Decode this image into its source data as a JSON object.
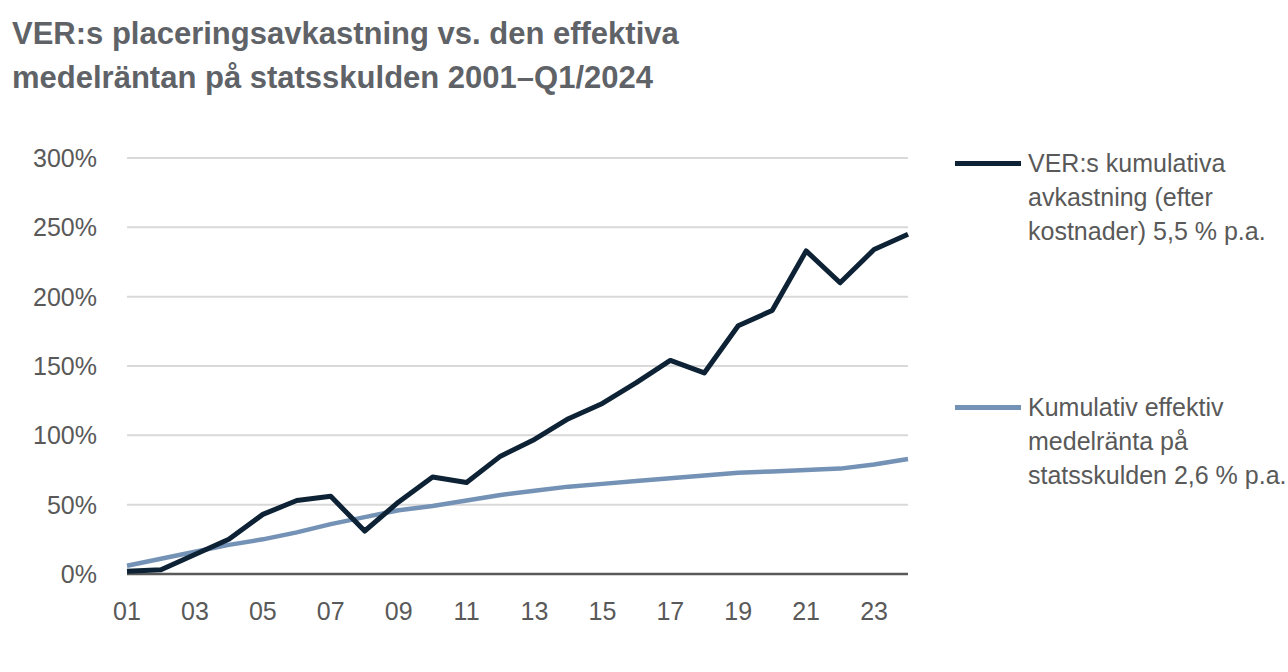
{
  "chart_data": {
    "type": "line",
    "title": "VER:s placeringsavkastning vs. den effektiva medelräntan på statsskulden 2001–Q1/2024",
    "categories": [
      "01",
      null,
      "03",
      null,
      "05",
      null,
      "07",
      null,
      "09",
      null,
      "11",
      null,
      "13",
      null,
      "15",
      null,
      "17",
      null,
      "19",
      null,
      "21",
      null,
      "23",
      null
    ],
    "series": [
      {
        "name": "VER:s kumulativa avkastning (efter kostnader) 5,5 % p.a.",
        "color": "#0d2235",
        "values": [
          2,
          3,
          14,
          25,
          43,
          53,
          56,
          31,
          52,
          70,
          66,
          85,
          97,
          112,
          123,
          138,
          154,
          145,
          179,
          190,
          233,
          210,
          234,
          245
        ]
      },
      {
        "name": "Kumulativ effektiv medelränta på statsskulden 2,6 % p.a.",
        "color": "#7492b5",
        "values": [
          6,
          11,
          16,
          21,
          25,
          30,
          36,
          41,
          46,
          49,
          53,
          57,
          60,
          63,
          65,
          67,
          69,
          71,
          73,
          74,
          75,
          76,
          79,
          83
        ]
      }
    ],
    "ylim": [
      0,
      300
    ],
    "yticks": [
      {
        "value": 0,
        "label": "0%"
      },
      {
        "value": 50,
        "label": "50%"
      },
      {
        "value": 100,
        "label": "100%"
      },
      {
        "value": 150,
        "label": "150%"
      },
      {
        "value": 200,
        "label": "200%"
      },
      {
        "value": 250,
        "label": "250%"
      },
      {
        "value": 300,
        "label": "300%"
      }
    ],
    "grid": true,
    "legend": "right"
  }
}
